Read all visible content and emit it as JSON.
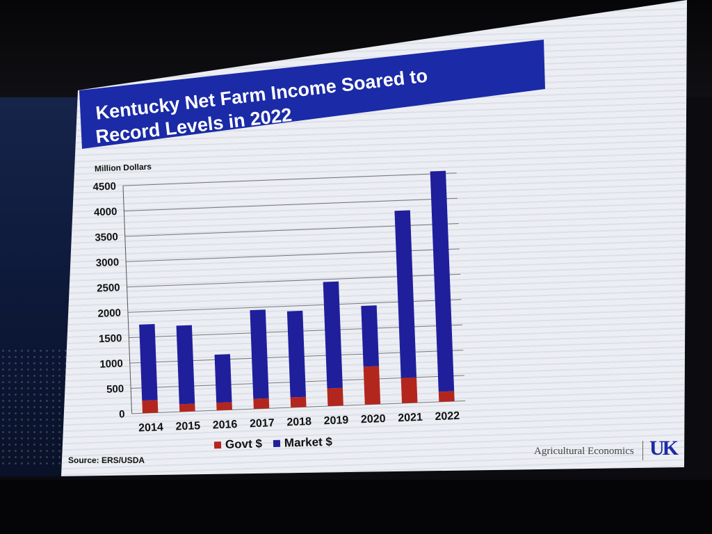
{
  "slide": {
    "title_line_1": "Kentucky Net Farm Income Soared to",
    "title_line_2": "Record Levels in 2022",
    "source": "Source:  ERS/USDA",
    "footer_org": "Agricultural Economics",
    "logo_text": "UK"
  },
  "colors": {
    "title_band": "#1b2aa6",
    "govt": "#b3261e",
    "market": "#1f1f9c"
  },
  "chart_data": {
    "type": "bar",
    "stacked": true,
    "title": "Kentucky Net Farm Income Soared to Record Levels in 2022",
    "ylabel": "Million Dollars",
    "xlabel": "",
    "ylim": [
      0,
      4500
    ],
    "yticks": [
      0,
      500,
      1000,
      1500,
      2000,
      2500,
      3000,
      3500,
      4000,
      4500
    ],
    "grid": true,
    "legend_position": "bottom",
    "categories": [
      "2014",
      "2015",
      "2016",
      "2017",
      "2018",
      "2019",
      "2020",
      "2021",
      "2022"
    ],
    "series": [
      {
        "name": "Govt $",
        "values": [
          250,
          150,
          150,
          200,
          200,
          350,
          750,
          500,
          200
        ]
      },
      {
        "name": "Market $",
        "values": [
          1500,
          1550,
          950,
          1750,
          1700,
          2100,
          1200,
          3300,
          4350
        ]
      }
    ]
  }
}
